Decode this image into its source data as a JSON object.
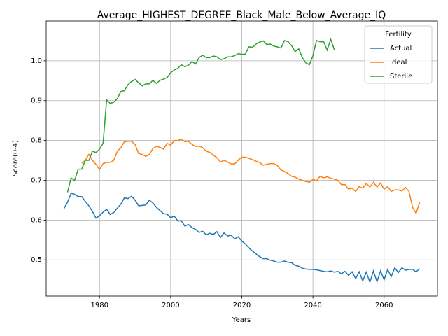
{
  "chart_data": {
    "type": "line",
    "title": "Average_HIGHEST_DEGREE_Black_Male_Below_Average_IQ",
    "xlabel": "Years",
    "ylabel": "Score(0-4)",
    "legend_title": "Fertility",
    "legend": "upper right",
    "grid": true,
    "xlim": [
      1965,
      2075
    ],
    "ylim": [
      0.409,
      1.1
    ],
    "xticks": [
      1980,
      2000,
      2020,
      2040,
      2060
    ],
    "yticks": [
      0.5,
      0.6,
      0.7,
      0.8,
      0.9,
      {
        "value": 1.0,
        "label": "1.0"
      }
    ],
    "x": [
      1970,
      1971,
      1972,
      1973,
      1974,
      1975,
      1976,
      1977,
      1978,
      1979,
      1980,
      1981,
      1982,
      1983,
      1984,
      1985,
      1986,
      1987,
      1988,
      1989,
      1990,
      1991,
      1992,
      1993,
      1994,
      1995,
      1996,
      1997,
      1998,
      1999,
      2000,
      2001,
      2002,
      2003,
      2004,
      2005,
      2006,
      2007,
      2008,
      2009,
      2010,
      2011,
      2012,
      2013,
      2014,
      2015,
      2016,
      2017,
      2018,
      2019,
      2020,
      2021,
      2022,
      2023,
      2024,
      2025,
      2026,
      2027,
      2028,
      2029,
      2030,
      2031,
      2032,
      2033,
      2034,
      2035,
      2036,
      2037,
      2038,
      2039,
      2040,
      2041,
      2042,
      2043,
      2044,
      2045,
      2046,
      2047,
      2048,
      2049,
      2050,
      2051,
      2052,
      2053,
      2054,
      2055,
      2056,
      2057,
      2058,
      2059,
      2060,
      2061,
      2062,
      2063,
      2064,
      2065,
      2066,
      2067,
      2068,
      2069,
      2070
    ],
    "series": [
      {
        "name": "Actual",
        "color": "#1f77b4",
        "values": [
          0.629,
          0.645,
          0.667,
          0.665,
          0.659,
          0.659,
          0.647,
          0.636,
          0.622,
          0.605,
          0.611,
          0.62,
          0.627,
          0.614,
          0.619,
          0.63,
          0.64,
          0.656,
          0.654,
          0.66,
          0.65,
          0.636,
          0.637,
          0.638,
          0.65,
          0.643,
          0.632,
          0.624,
          0.616,
          0.615,
          0.606,
          0.61,
          0.598,
          0.598,
          0.585,
          0.589,
          0.581,
          0.577,
          0.569,
          0.572,
          0.563,
          0.567,
          0.564,
          0.571,
          0.556,
          0.568,
          0.56,
          0.562,
          0.553,
          0.558,
          0.547,
          0.54,
          0.53,
          0.522,
          0.515,
          0.508,
          0.503,
          0.503,
          0.499,
          0.497,
          0.494,
          0.494,
          0.497,
          0.494,
          0.493,
          0.486,
          0.484,
          0.479,
          0.477,
          0.476,
          0.476,
          0.475,
          0.473,
          0.471,
          0.47,
          0.472,
          0.469,
          0.471,
          0.465,
          0.471,
          0.461,
          0.47,
          0.453,
          0.47,
          0.447,
          0.469,
          0.444,
          0.472,
          0.445,
          0.472,
          0.45,
          0.476,
          0.458,
          0.48,
          0.468,
          0.48,
          0.474,
          0.476,
          0.476,
          0.47,
          0.478
        ]
      },
      {
        "name": "Ideal",
        "color": "#ff7f0e",
        "values": [
          null,
          null,
          null,
          null,
          null,
          0.743,
          0.75,
          0.765,
          0.75,
          0.74,
          0.727,
          0.742,
          0.745,
          0.745,
          0.75,
          0.773,
          0.782,
          0.797,
          0.798,
          0.798,
          0.79,
          0.767,
          0.765,
          0.76,
          0.765,
          0.78,
          0.785,
          0.783,
          0.778,
          0.793,
          0.788,
          0.8,
          0.8,
          0.803,
          0.797,
          0.798,
          0.79,
          0.785,
          0.786,
          0.782,
          0.773,
          0.77,
          0.763,
          0.757,
          0.746,
          0.75,
          0.746,
          0.741,
          0.741,
          0.751,
          0.758,
          0.758,
          0.755,
          0.752,
          0.748,
          0.745,
          0.738,
          0.74,
          0.742,
          0.742,
          0.737,
          0.726,
          0.722,
          0.717,
          0.71,
          0.708,
          0.703,
          0.7,
          0.697,
          0.695,
          0.702,
          0.699,
          0.71,
          0.706,
          0.709,
          0.705,
          0.703,
          0.7,
          0.689,
          0.689,
          0.678,
          0.68,
          0.672,
          0.684,
          0.68,
          0.692,
          0.683,
          0.695,
          0.683,
          0.693,
          0.678,
          0.684,
          0.672,
          0.676,
          0.676,
          0.673,
          0.682,
          0.672,
          0.632,
          0.617,
          0.645
        ]
      },
      {
        "name": "Sterile",
        "color": "#2ca02c",
        "values": [
          null,
          0.67,
          0.706,
          0.7,
          0.728,
          0.728,
          0.75,
          0.75,
          0.773,
          0.77,
          0.778,
          0.793,
          0.902,
          0.893,
          0.896,
          0.905,
          0.923,
          0.925,
          0.94,
          0.948,
          0.953,
          0.945,
          0.937,
          0.942,
          0.942,
          0.951,
          0.943,
          0.951,
          0.954,
          0.958,
          0.97,
          0.977,
          0.981,
          0.99,
          0.985,
          0.989,
          0.998,
          0.992,
          1.008,
          1.014,
          1.008,
          1.008,
          1.012,
          1.01,
          1.003,
          1.005,
          1.01,
          1.01,
          1.013,
          1.018,
          1.016,
          1.017,
          1.035,
          1.034,
          1.042,
          1.047,
          1.05,
          1.041,
          1.042,
          1.037,
          1.035,
          1.032,
          1.051,
          1.048,
          1.038,
          1.023,
          1.03,
          1.008,
          0.995,
          0.99,
          1.013,
          1.051,
          1.048,
          1.048,
          1.027,
          1.054,
          1.028,
          null,
          null,
          null,
          null,
          null,
          null,
          null,
          null,
          null,
          null,
          null,
          null,
          null,
          null,
          null,
          null,
          null,
          null,
          null,
          null,
          null,
          null,
          null,
          null
        ]
      }
    ]
  }
}
